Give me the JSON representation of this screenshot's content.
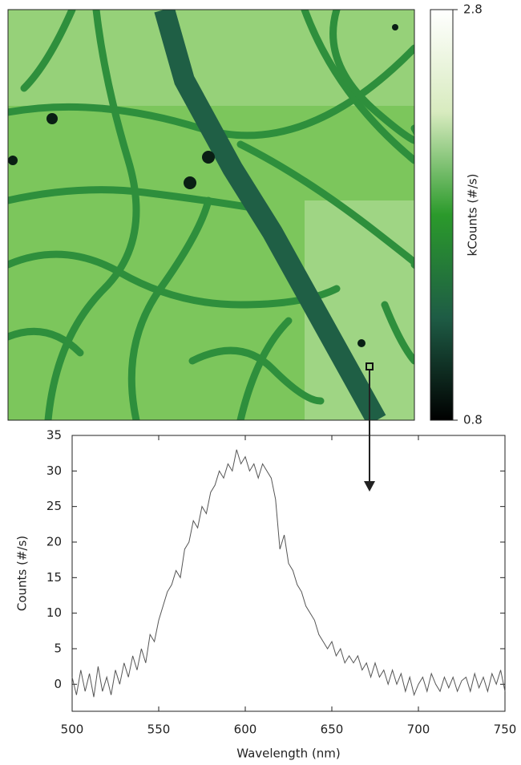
{
  "chart_data": [
    {
      "type": "heatmap",
      "colorbar_label": "kCounts (#/s)",
      "clim": [
        0.8,
        2.8
      ],
      "cticks": [
        0.8,
        2.8
      ],
      "colormap": [
        "#000000",
        "#1e5c45",
        "#2b9a2b",
        "#d8ebbf",
        "#ffffff"
      ]
    },
    {
      "type": "line",
      "xlabel": "Wavelength (nm)",
      "ylabel": "Counts (#/s)",
      "color": "#555555",
      "xlim": [
        500,
        750
      ],
      "ylim": [
        -3.8,
        35
      ],
      "xticks": [
        500,
        550,
        600,
        650,
        700,
        750
      ],
      "yticks": [
        0,
        5,
        10,
        15,
        20,
        25,
        30,
        35
      ],
      "x": [
        500,
        502.5,
        505,
        507.5,
        510,
        512.5,
        515,
        517.5,
        520,
        522.5,
        525,
        527.5,
        530,
        532.5,
        535,
        537.5,
        540,
        542.5,
        545,
        547.5,
        550,
        552.5,
        555,
        557.5,
        560,
        562.5,
        565,
        567.5,
        570,
        572.5,
        575,
        577.5,
        580,
        582.5,
        585,
        587.5,
        590,
        592.5,
        595,
        597.5,
        600,
        602.5,
        605,
        607.5,
        610,
        612.5,
        615,
        617.5,
        620,
        622.5,
        625,
        627.5,
        630,
        632.5,
        635,
        637.5,
        640,
        642.5,
        645,
        647.5,
        650,
        652.5,
        655,
        657.5,
        660,
        662.5,
        665,
        667.5,
        670,
        672.5,
        675,
        677.5,
        680,
        682.5,
        685,
        687.5,
        690,
        692.5,
        695,
        697.5,
        700,
        702.5,
        705,
        707.5,
        710,
        712.5,
        715,
        717.5,
        720,
        722.5,
        725,
        727.5,
        730,
        732.5,
        735,
        737.5,
        740,
        742.5,
        745,
        747.5,
        750
      ],
      "values": [
        1,
        -1.5,
        2,
        -1,
        1.5,
        -1.8,
        2.5,
        -1,
        1,
        -1.5,
        2,
        0,
        3,
        1,
        4,
        2,
        5,
        3,
        7,
        6,
        9,
        11,
        13,
        14,
        16,
        15,
        19,
        20,
        23,
        22,
        25,
        24,
        27,
        28,
        30,
        29,
        31,
        30,
        33,
        31,
        32,
        30,
        31,
        29,
        31,
        30,
        29,
        26,
        19,
        21,
        17,
        16,
        14,
        13,
        11,
        10,
        9,
        7,
        6,
        5,
        6,
        4,
        5,
        3,
        4,
        3,
        4,
        2,
        3,
        1,
        3,
        1,
        2,
        0,
        2,
        0,
        1.5,
        -1,
        1,
        -1.5,
        0,
        1,
        -1,
        1.5,
        0,
        -1,
        1,
        -0.5,
        1,
        -1,
        0.5,
        1,
        -1,
        1.5,
        -0.5,
        1,
        -1,
        1.5,
        0,
        2,
        -1
      ]
    }
  ]
}
